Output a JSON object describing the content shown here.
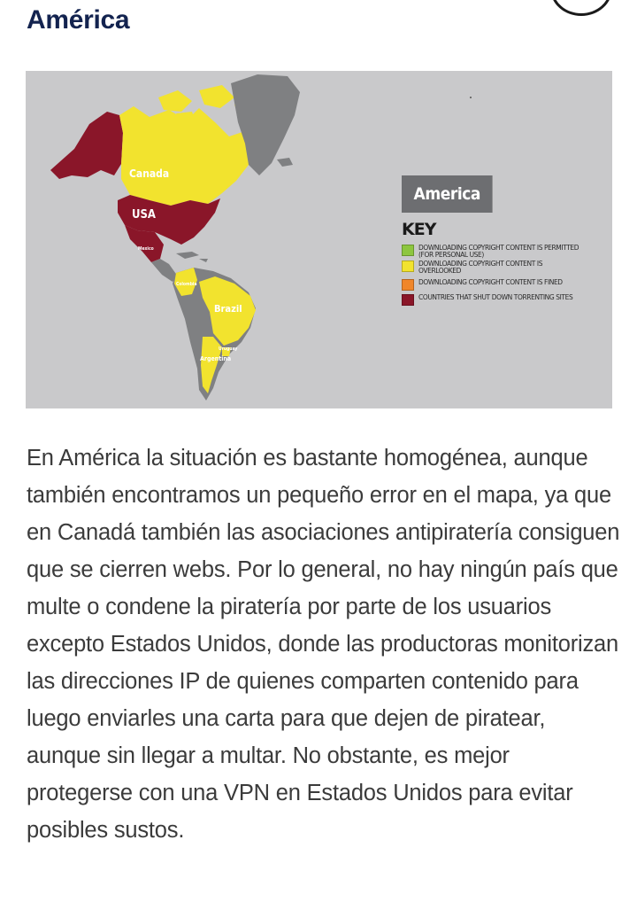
{
  "heading": "América",
  "map": {
    "title": "America",
    "key_title": "KEY",
    "labels": {
      "canada": "Canada",
      "usa": "USA",
      "mexico": "Mexico",
      "colombia": "Colombia",
      "brazil": "Brazil",
      "uruguay": "Uruguay",
      "argentina": "Argentina"
    },
    "legend": [
      {
        "text": "DOWNLOADING COPYRIGHT CONTENT IS PERMITTED (FOR PERSONAL USE)",
        "color": "#8dc63f"
      },
      {
        "text": "DOWNLOADING COPYRIGHT CONTENT IS OVERLOOKED",
        "color": "#f2e32e"
      },
      {
        "text": "DOWNLOADING COPYRIGHT CONTENT IS FINED",
        "color": "#f0862a"
      },
      {
        "text": "COUNTRIES THAT SHUT DOWN TORRENTING SITES",
        "color": "#8a1629"
      }
    ]
  },
  "body_text": "En América la situación es bastante homogénea, aunque también encontramos un pequeño error en el mapa, ya que en Canadá también las asociaciones antipiratería consiguen que se cierren webs. Por lo general, no hay ningún país que multe o condene la piratería por parte de los usuarios excepto Estados Unidos, donde las productoras monitorizan las direcciones IP de quienes comparten contenido para luego enviarles una carta para que dejen de piratear, aunque sin llegar a multar. No obstante, es mejor protegerse con una VPN en Estados Unidos para evitar posibles sustos.",
  "colors": {
    "heading": "#13234f",
    "map_background": "#c9c9cb",
    "land_grey": "#7f8082",
    "overlooked_yellow": "#f2e32e",
    "shutdown_red": "#8a1629",
    "title_box": "#6d6e71"
  }
}
